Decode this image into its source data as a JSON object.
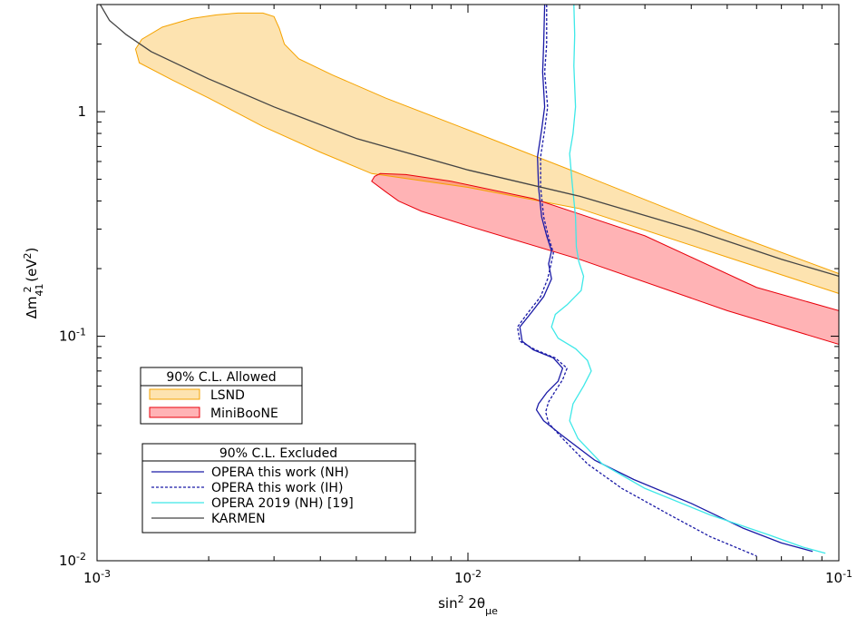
{
  "chart_data": {
    "type": "area",
    "xlabel": "sin² 2θ_μe",
    "ylabel": "Δm₄₁² (eV²)",
    "xscale": "log",
    "yscale": "log",
    "xlim": [
      0.001,
      0.1
    ],
    "ylim": [
      0.01,
      3.0
    ],
    "grid": false,
    "x_ticks": [
      {
        "base": "10",
        "exp": "-3"
      },
      {
        "base": "10",
        "exp": "-2"
      },
      {
        "base": "10",
        "exp": "-1"
      }
    ],
    "y_ticks": [
      {
        "value": 1,
        "text": "1"
      },
      {
        "value": 0.1,
        "base": "10",
        "exp": "-1"
      },
      {
        "value": 0.01,
        "base": "10",
        "exp": "-2"
      }
    ],
    "legend_allowed": {
      "title": "90% C.L. Allowed",
      "entries": [
        {
          "label": "LSND",
          "fill": "#fde3b0",
          "stroke": "#f5a300"
        },
        {
          "label": "MiniBooNE",
          "fill": "#ffb3b5",
          "stroke": "#e8000b"
        }
      ]
    },
    "legend_excluded": {
      "title": "90% C.L. Excluded",
      "entries": [
        {
          "label": "OPERA this work (NH)",
          "color": "#1a1aa6",
          "dash": false
        },
        {
          "label": "OPERA this work (IH)",
          "color": "#1a1aa6",
          "dash": true
        },
        {
          "label": "OPERA 2019 (NH) [19]",
          "color": "#3ee8e8",
          "dash": false
        },
        {
          "label": "KARMEN",
          "color": "#444444",
          "dash": false
        }
      ]
    },
    "overlap_color": "#fca080",
    "lsnd_region": [
      [
        0.00127,
        1.9
      ],
      [
        0.00132,
        2.1
      ],
      [
        0.0015,
        2.38
      ],
      [
        0.0018,
        2.6
      ],
      [
        0.0021,
        2.7
      ],
      [
        0.0024,
        2.75
      ],
      [
        0.0028,
        2.75
      ],
      [
        0.003,
        2.65
      ],
      [
        0.0031,
        2.35
      ],
      [
        0.0032,
        2.0
      ],
      [
        0.0035,
        1.72
      ],
      [
        0.0043,
        1.46
      ],
      [
        0.006,
        1.15
      ],
      [
        0.01,
        0.83
      ],
      [
        0.02,
        0.53
      ],
      [
        0.05,
        0.29
      ],
      [
        0.1,
        0.19
      ],
      [
        0.1,
        0.155
      ],
      [
        0.05,
        0.225
      ],
      [
        0.02,
        0.37
      ],
      [
        0.01,
        0.46
      ],
      [
        0.0055,
        0.53
      ],
      [
        0.004,
        0.66
      ],
      [
        0.0028,
        0.86
      ],
      [
        0.002,
        1.15
      ],
      [
        0.0016,
        1.38
      ],
      [
        0.0013,
        1.65
      ]
    ],
    "miniboone_region": [
      [
        0.0058,
        0.53
      ],
      [
        0.0068,
        0.525
      ],
      [
        0.009,
        0.49
      ],
      [
        0.015,
        0.41
      ],
      [
        0.03,
        0.28
      ],
      [
        0.06,
        0.165
      ],
      [
        0.1,
        0.13
      ],
      [
        0.1,
        0.092
      ],
      [
        0.05,
        0.13
      ],
      [
        0.02,
        0.22
      ],
      [
        0.01,
        0.31
      ],
      [
        0.0075,
        0.36
      ],
      [
        0.0065,
        0.4
      ],
      [
        0.006,
        0.44
      ],
      [
        0.0055,
        0.49
      ],
      [
        0.0056,
        0.515
      ]
    ],
    "series": [
      {
        "name": "OPERA this work (NH)",
        "color": "#1a1aa6",
        "dash": false,
        "points": [
          [
            0.0161,
            3.0
          ],
          [
            0.016,
            2.0
          ],
          [
            0.0159,
            1.5
          ],
          [
            0.0161,
            1.05
          ],
          [
            0.0158,
            0.83
          ],
          [
            0.0154,
            0.63
          ],
          [
            0.0155,
            0.46
          ],
          [
            0.0158,
            0.34
          ],
          [
            0.0163,
            0.28
          ],
          [
            0.0168,
            0.24
          ],
          [
            0.0165,
            0.21
          ],
          [
            0.0168,
            0.18
          ],
          [
            0.016,
            0.15
          ],
          [
            0.0148,
            0.127
          ],
          [
            0.0138,
            0.11
          ],
          [
            0.014,
            0.095
          ],
          [
            0.015,
            0.087
          ],
          [
            0.017,
            0.08
          ],
          [
            0.018,
            0.072
          ],
          [
            0.0175,
            0.063
          ],
          [
            0.0163,
            0.056
          ],
          [
            0.0155,
            0.05
          ],
          [
            0.0153,
            0.047
          ],
          [
            0.016,
            0.042
          ],
          [
            0.018,
            0.036
          ],
          [
            0.022,
            0.028
          ],
          [
            0.028,
            0.023
          ],
          [
            0.04,
            0.018
          ],
          [
            0.055,
            0.014
          ],
          [
            0.07,
            0.012
          ],
          [
            0.085,
            0.011
          ]
        ]
      },
      {
        "name": "OPERA this work (IH)",
        "color": "#1a1aa6",
        "dash": true,
        "points": [
          [
            0.0163,
            3.0
          ],
          [
            0.0163,
            2.0
          ],
          [
            0.0161,
            1.5
          ],
          [
            0.0164,
            1.05
          ],
          [
            0.0161,
            0.83
          ],
          [
            0.0157,
            0.63
          ],
          [
            0.0157,
            0.46
          ],
          [
            0.016,
            0.34
          ],
          [
            0.0165,
            0.275
          ],
          [
            0.017,
            0.235
          ],
          [
            0.0167,
            0.205
          ],
          [
            0.0164,
            0.18
          ],
          [
            0.0157,
            0.15
          ],
          [
            0.0145,
            0.127
          ],
          [
            0.0136,
            0.11
          ],
          [
            0.0138,
            0.095
          ],
          [
            0.0152,
            0.087
          ],
          [
            0.0172,
            0.08
          ],
          [
            0.0185,
            0.072
          ],
          [
            0.018,
            0.064
          ],
          [
            0.0172,
            0.057
          ],
          [
            0.0165,
            0.051
          ],
          [
            0.0162,
            0.046
          ],
          [
            0.0165,
            0.041
          ],
          [
            0.018,
            0.035
          ],
          [
            0.021,
            0.027
          ],
          [
            0.026,
            0.021
          ],
          [
            0.035,
            0.016
          ],
          [
            0.045,
            0.0128
          ],
          [
            0.06,
            0.0105
          ]
        ]
      },
      {
        "name": "OPERA 2019 (NH) [19]",
        "color": "#3ee8e8",
        "dash": false,
        "points": [
          [
            0.0193,
            3.0
          ],
          [
            0.0194,
            2.2
          ],
          [
            0.0193,
            1.6
          ],
          [
            0.0195,
            1.05
          ],
          [
            0.0192,
            0.8
          ],
          [
            0.0188,
            0.65
          ],
          [
            0.0191,
            0.48
          ],
          [
            0.0195,
            0.34
          ],
          [
            0.0196,
            0.25
          ],
          [
            0.0199,
            0.215
          ],
          [
            0.0205,
            0.185
          ],
          [
            0.0202,
            0.16
          ],
          [
            0.0185,
            0.138
          ],
          [
            0.0172,
            0.125
          ],
          [
            0.0168,
            0.11
          ],
          [
            0.0175,
            0.098
          ],
          [
            0.0195,
            0.088
          ],
          [
            0.021,
            0.078
          ],
          [
            0.0215,
            0.07
          ],
          [
            0.0205,
            0.06
          ],
          [
            0.0192,
            0.05
          ],
          [
            0.0188,
            0.042
          ],
          [
            0.0198,
            0.035
          ],
          [
            0.023,
            0.027
          ],
          [
            0.03,
            0.021
          ],
          [
            0.045,
            0.016
          ],
          [
            0.065,
            0.013
          ],
          [
            0.08,
            0.0115
          ],
          [
            0.092,
            0.0108
          ]
        ]
      },
      {
        "name": "KARMEN",
        "color": "#444444",
        "dash": false,
        "points": [
          [
            0.00102,
            3.0
          ],
          [
            0.00108,
            2.55
          ],
          [
            0.0012,
            2.2
          ],
          [
            0.0014,
            1.85
          ],
          [
            0.002,
            1.4
          ],
          [
            0.003,
            1.05
          ],
          [
            0.005,
            0.76
          ],
          [
            0.01,
            0.55
          ],
          [
            0.02,
            0.42
          ],
          [
            0.04,
            0.3
          ],
          [
            0.07,
            0.22
          ],
          [
            0.1,
            0.185
          ]
        ]
      }
    ]
  }
}
